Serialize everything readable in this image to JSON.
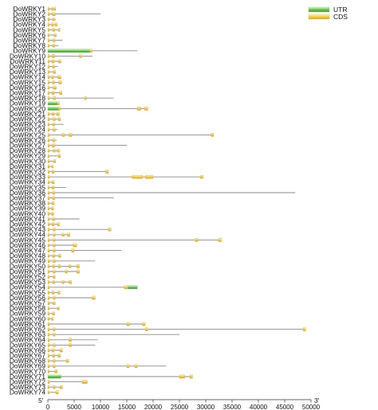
{
  "legend": [
    {
      "label": "UTR",
      "color": "#4caf3a",
      "light": "#d9f2c9"
    },
    {
      "label": "CDS",
      "color": "#f2c12e",
      "light": "#fff3b8"
    }
  ],
  "chart_data": {
    "type": "gene-structure",
    "xlim": [
      0,
      50000
    ],
    "ticks": [
      0,
      5000,
      10000,
      15000,
      20000,
      25000,
      30000,
      35000,
      40000,
      45000,
      50000
    ],
    "end_labels": {
      "five": "5'",
      "three": "3'"
    },
    "genes": [
      {
        "name": "DoWRKY1",
        "length": 1500,
        "cds": [
          [
            0,
            250
          ],
          [
            700,
            1000
          ],
          [
            1200,
            1500
          ]
        ]
      },
      {
        "name": "DoWRKY2",
        "length": 10000,
        "cds": [
          [
            0,
            250
          ],
          [
            850,
            1400
          ]
        ]
      },
      {
        "name": "DoWRKY3",
        "length": 1500,
        "cds": [
          [
            0,
            250
          ],
          [
            900,
            1300
          ]
        ]
      },
      {
        "name": "DoWRKY4",
        "length": 1800,
        "cds": [
          [
            0,
            250
          ],
          [
            700,
            1100
          ],
          [
            1400,
            1800
          ]
        ]
      },
      {
        "name": "DoWRKY5",
        "length": 2300,
        "cds": [
          [
            0,
            250
          ],
          [
            900,
            1300
          ],
          [
            2000,
            2300
          ]
        ]
      },
      {
        "name": "DoWRKY6",
        "length": 1600,
        "cds": [
          [
            0,
            250
          ],
          [
            1200,
            1600
          ]
        ]
      },
      {
        "name": "DoWRKY7",
        "length": 2800,
        "cds": [
          [
            0,
            250
          ],
          [
            1000,
            1400
          ]
        ]
      },
      {
        "name": "DoWRKY8",
        "length": 2000,
        "cds": [
          [
            0,
            250
          ],
          [
            900,
            1300
          ]
        ]
      },
      {
        "name": "DoWRKY9",
        "length": 17000,
        "utr": [
          [
            0,
            8000
          ]
        ],
        "cds": [
          [
            8000,
            8400
          ]
        ]
      },
      {
        "name": "DoWRKY10",
        "length": 8500,
        "cds": [
          [
            0,
            300
          ],
          [
            800,
            1300
          ],
          [
            6000,
            6400
          ]
        ]
      },
      {
        "name": "DoWRKY11",
        "length": 2500,
        "cds": [
          [
            0,
            250
          ],
          [
            800,
            1200
          ],
          [
            2000,
            2500
          ]
        ]
      },
      {
        "name": "DoWRKY12",
        "length": 1900,
        "cds": [
          [
            0,
            250
          ],
          [
            900,
            1300
          ]
        ]
      },
      {
        "name": "DoWRKY13",
        "length": 1500,
        "cds": [
          [
            0,
            250
          ],
          [
            1000,
            1500
          ]
        ]
      },
      {
        "name": "DoWRKY14",
        "length": 2500,
        "cds": [
          [
            0,
            250
          ],
          [
            700,
            1100
          ],
          [
            1900,
            2500
          ]
        ]
      },
      {
        "name": "DoWRKY15",
        "length": 2600,
        "cds": [
          [
            0,
            250
          ],
          [
            900,
            1300
          ],
          [
            2100,
            2600
          ]
        ]
      },
      {
        "name": "DoWRKY16",
        "length": 1600,
        "cds": [
          [
            0,
            250
          ],
          [
            1000,
            1600
          ]
        ]
      },
      {
        "name": "DoWRKY17",
        "length": 2700,
        "cds": [
          [
            0,
            250
          ],
          [
            800,
            1200
          ],
          [
            2200,
            2700
          ]
        ]
      },
      {
        "name": "DoWRKY18",
        "length": 12500,
        "cds": [
          [
            0,
            300
          ],
          [
            1000,
            1500
          ],
          [
            7000,
            7300
          ]
        ]
      },
      {
        "name": "DoWRKY19",
        "length": 2200,
        "utr": [
          [
            0,
            1800
          ]
        ],
        "cds": [
          [
            1800,
            2200
          ]
        ]
      },
      {
        "name": "DoWRKY20",
        "length": 19000,
        "utr": [
          [
            0,
            2000
          ]
        ],
        "cds": [
          [
            2000,
            2400
          ],
          [
            17000,
            17700
          ],
          [
            18400,
            19000
          ]
        ]
      },
      {
        "name": "DoWRKY21",
        "length": 2200,
        "cds": [
          [
            0,
            250
          ],
          [
            800,
            1200
          ],
          [
            1700,
            2200
          ]
        ]
      },
      {
        "name": "DoWRKY22",
        "length": 2400,
        "cds": [
          [
            0,
            250
          ],
          [
            1000,
            1400
          ],
          [
            2000,
            2400
          ]
        ]
      },
      {
        "name": "DoWRKY23",
        "length": 3000,
        "cds": [
          [
            0,
            250
          ],
          [
            900,
            1300
          ]
        ]
      },
      {
        "name": "DoWRKY24",
        "length": 1800,
        "cds": [
          [
            0,
            250
          ],
          [
            1000,
            1400
          ]
        ]
      },
      {
        "name": "DoWRKY25",
        "length": 31500,
        "cds": [
          [
            0,
            300
          ],
          [
            2700,
            3200
          ],
          [
            4000,
            4600
          ],
          [
            31000,
            31500
          ]
        ]
      },
      {
        "name": "DoWRKY26",
        "length": 1700,
        "cds": [
          [
            0,
            250
          ],
          [
            900,
            1300
          ]
        ]
      },
      {
        "name": "DoWRKY27",
        "length": 15000,
        "cds": [
          [
            0,
            300
          ],
          [
            800,
            1300
          ]
        ]
      },
      {
        "name": "DoWRKY28",
        "length": 2200,
        "cds": [
          [
            0,
            250
          ],
          [
            1000,
            1400
          ],
          [
            1800,
            2200
          ]
        ]
      },
      {
        "name": "DoWRKY29",
        "length": 2400,
        "cds": [
          [
            0,
            250
          ],
          [
            2000,
            2400
          ]
        ]
      },
      {
        "name": "DoWRKY30",
        "length": 1500,
        "cds": [
          [
            0,
            250
          ],
          [
            1100,
            1500
          ]
        ]
      },
      {
        "name": "DoWRKY31",
        "length": 1000,
        "cds": [
          [
            0,
            250
          ],
          [
            700,
            1000
          ]
        ]
      },
      {
        "name": "DoWRKY32",
        "length": 11500,
        "cds": [
          [
            0,
            300
          ],
          [
            800,
            1200
          ],
          [
            11000,
            11500
          ]
        ]
      },
      {
        "name": "DoWRKY33",
        "length": 29500,
        "cds": [
          [
            0,
            300
          ],
          [
            16000,
            18000
          ],
          [
            18500,
            20000
          ],
          [
            29000,
            29500
          ]
        ]
      },
      {
        "name": "DoWRKY34",
        "length": 1200,
        "cds": [
          [
            0,
            250
          ],
          [
            800,
            1200
          ]
        ]
      },
      {
        "name": "DoWRKY35",
        "length": 3500,
        "cds": [
          [
            0,
            250
          ],
          [
            800,
            1200
          ]
        ]
      },
      {
        "name": "DoWRKY36",
        "length": 47000,
        "cds": [
          [
            0,
            300
          ],
          [
            900,
            1300
          ]
        ]
      },
      {
        "name": "DoWRKY37",
        "length": 12500,
        "cds": [
          [
            0,
            300
          ],
          [
            900,
            1300
          ]
        ]
      },
      {
        "name": "DoWRKY38",
        "length": 1200,
        "cds": [
          [
            0,
            250
          ],
          [
            800,
            1200
          ]
        ]
      },
      {
        "name": "DoWRKY39",
        "length": 1100,
        "cds": [
          [
            0,
            250
          ],
          [
            700,
            1100
          ]
        ]
      },
      {
        "name": "DoWRKY40",
        "length": 1100,
        "cds": [
          [
            0,
            250
          ],
          [
            700,
            1100
          ]
        ]
      },
      {
        "name": "DoWRKY41",
        "length": 6000,
        "cds": [
          [
            0,
            250
          ],
          [
            900,
            1300
          ]
        ]
      },
      {
        "name": "DoWRKY42",
        "length": 2200,
        "cds": [
          [
            0,
            250
          ],
          [
            800,
            1200
          ],
          [
            1800,
            2200
          ]
        ]
      },
      {
        "name": "DoWRKY43",
        "length": 12000,
        "cds": [
          [
            0,
            300
          ],
          [
            1000,
            1400
          ],
          [
            11500,
            12000
          ]
        ]
      },
      {
        "name": "DoWRKY44",
        "length": 4200,
        "cds": [
          [
            0,
            250
          ],
          [
            1000,
            1400
          ],
          [
            2700,
            3100
          ],
          [
            3700,
            4200
          ]
        ]
      },
      {
        "name": "DoWRKY45",
        "length": 33000,
        "cds": [
          [
            0,
            300
          ],
          [
            1000,
            1400
          ],
          [
            28000,
            28500
          ],
          [
            32400,
            33000
          ]
        ]
      },
      {
        "name": "DoWRKY46",
        "length": 5500,
        "cds": [
          [
            0,
            250
          ],
          [
            1000,
            1400
          ],
          [
            4800,
            5500
          ]
        ]
      },
      {
        "name": "DoWRKY47",
        "length": 14000,
        "cds": [
          [
            0,
            300
          ],
          [
            1000,
            1400
          ],
          [
            4500,
            5000
          ]
        ]
      },
      {
        "name": "DoWRKY48",
        "length": 2500,
        "cds": [
          [
            0,
            250
          ],
          [
            900,
            1300
          ],
          [
            2000,
            2500
          ]
        ]
      },
      {
        "name": "DoWRKY49",
        "length": 9000,
        "cds": [
          [
            0,
            300
          ],
          [
            1000,
            1400
          ]
        ]
      },
      {
        "name": "DoWRKY50",
        "length": 6000,
        "cds": [
          [
            0,
            250
          ],
          [
            900,
            1300
          ],
          [
            2000,
            2400
          ],
          [
            4000,
            4400
          ],
          [
            5500,
            6000
          ]
        ]
      },
      {
        "name": "DoWRKY51",
        "length": 6000,
        "cds": [
          [
            0,
            250
          ],
          [
            1000,
            1400
          ],
          [
            3300,
            3700
          ],
          [
            5500,
            6000
          ]
        ]
      },
      {
        "name": "DoWRKY52",
        "length": 1400,
        "cds": [
          [
            0,
            250
          ],
          [
            1000,
            1400
          ]
        ]
      },
      {
        "name": "DoWRKY53",
        "length": 4500,
        "cds": [
          [
            0,
            250
          ],
          [
            900,
            1300
          ],
          [
            2700,
            3100
          ],
          [
            4000,
            4500
          ]
        ]
      },
      {
        "name": "DoWRKY54",
        "length": 17000,
        "utr": [
          [
            15200,
            17000
          ]
        ],
        "cds": [
          [
            0,
            300
          ],
          [
            14500,
            15200
          ]
        ]
      },
      {
        "name": "DoWRKY55",
        "length": 2300,
        "cds": [
          [
            0,
            250
          ],
          [
            800,
            1200
          ],
          [
            1900,
            2300
          ]
        ]
      },
      {
        "name": "DoWRKY56",
        "length": 9000,
        "cds": [
          [
            0,
            300
          ],
          [
            1000,
            1400
          ],
          [
            8400,
            9000
          ]
        ]
      },
      {
        "name": "DoWRKY57",
        "length": 1400,
        "cds": [
          [
            0,
            250
          ],
          [
            1000,
            1400
          ]
        ]
      },
      {
        "name": "DoWRKY58",
        "length": 2200,
        "cds": [
          [
            0,
            250
          ],
          [
            1800,
            2200
          ]
        ]
      },
      {
        "name": "DoWRKY59",
        "length": 1300,
        "cds": [
          [
            0,
            250
          ],
          [
            900,
            1300
          ]
        ]
      },
      {
        "name": "DoWRKY60",
        "length": 1000,
        "cds": [
          [
            0,
            250
          ],
          [
            700,
            1000
          ]
        ]
      },
      {
        "name": "DoWRKY61",
        "length": 18500,
        "cds": [
          [
            0,
            300
          ],
          [
            15000,
            15500
          ],
          [
            18000,
            18500
          ]
        ]
      },
      {
        "name": "DoWRKY62",
        "length": 49000,
        "cds": [
          [
            0,
            300
          ],
          [
            1000,
            1400
          ],
          [
            18500,
            19000
          ],
          [
            48500,
            49000
          ]
        ]
      },
      {
        "name": "DoWRKY63",
        "length": 25000,
        "cds": [
          [
            0,
            300
          ],
          [
            1000,
            1400
          ]
        ]
      },
      {
        "name": "DoWRKY64",
        "length": 9500,
        "cds": [
          [
            0,
            300
          ],
          [
            4000,
            4500
          ]
        ]
      },
      {
        "name": "DoWRKY65",
        "length": 9000,
        "cds": [
          [
            0,
            300
          ],
          [
            1000,
            1400
          ],
          [
            4000,
            4500
          ]
        ]
      },
      {
        "name": "DoWRKY66",
        "length": 2800,
        "cds": [
          [
            0,
            250
          ],
          [
            800,
            1200
          ],
          [
            2300,
            2800
          ]
        ]
      },
      {
        "name": "DoWRKY67",
        "length": 2400,
        "cds": [
          [
            0,
            250
          ],
          [
            900,
            1300
          ],
          [
            1900,
            2400
          ]
        ]
      },
      {
        "name": "DoWRKY68",
        "length": 4000,
        "cds": [
          [
            0,
            250
          ],
          [
            1000,
            1400
          ],
          [
            3500,
            4000
          ]
        ]
      },
      {
        "name": "DoWRKY69",
        "length": 22500,
        "cds": [
          [
            0,
            300
          ],
          [
            1000,
            1400
          ],
          [
            15000,
            15500
          ],
          [
            16500,
            17000
          ]
        ]
      },
      {
        "name": "DoWRKY70",
        "length": 1800,
        "cds": [
          [
            0,
            250
          ],
          [
            1300,
            1800
          ]
        ]
      },
      {
        "name": "DoWRKY71",
        "length": 27500,
        "utr": [
          [
            0,
            2500
          ]
        ],
        "cds": [
          [
            25000,
            26000
          ],
          [
            27000,
            27500
          ]
        ]
      },
      {
        "name": "DoWRKY72",
        "length": 7500,
        "cds": [
          [
            0,
            300
          ],
          [
            6500,
            7500
          ]
        ]
      },
      {
        "name": "DoWRKY73",
        "length": 2800,
        "cds": [
          [
            0,
            250
          ],
          [
            1000,
            1400
          ],
          [
            2300,
            2800
          ]
        ]
      },
      {
        "name": "DoWRKY74",
        "length": 2000,
        "cds": [
          [
            0,
            250
          ],
          [
            1500,
            2000
          ]
        ]
      }
    ]
  }
}
